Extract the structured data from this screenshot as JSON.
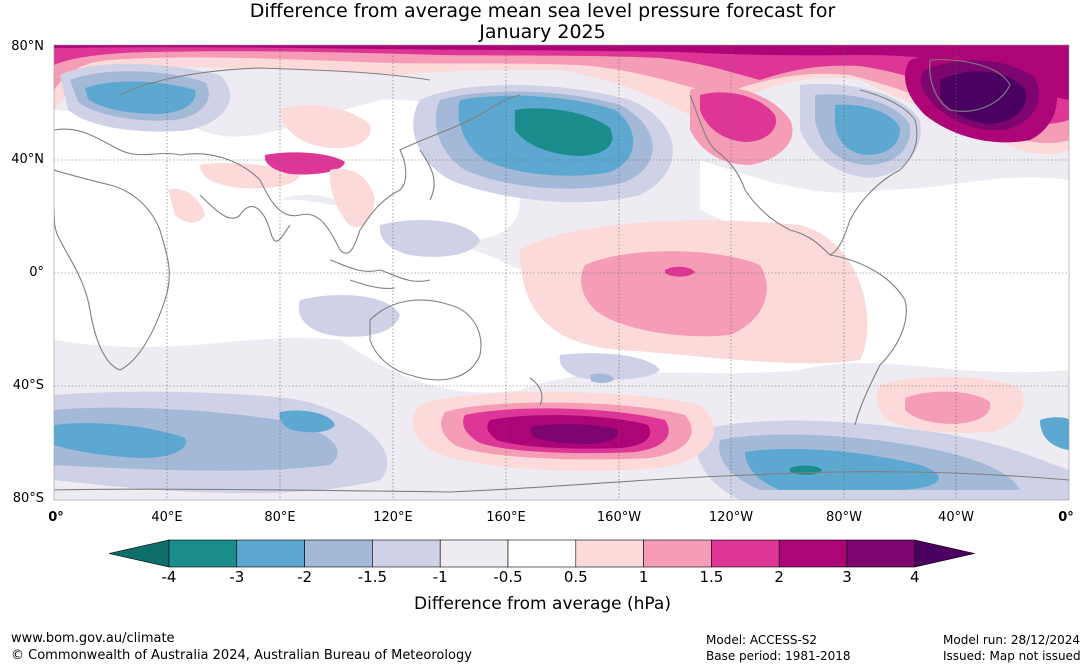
{
  "title_line1": "Difference from average mean sea level pressure forecast for",
  "title_line2": "January 2025",
  "lat_labels": [
    "80°N",
    "40°N",
    "0°",
    "40°S",
    "80°S"
  ],
  "lon_labels": [
    "0°",
    "40°E",
    "80°E",
    "120°E",
    "160°E",
    "160°W",
    "120°W",
    "80°W",
    "40°W",
    "0°"
  ],
  "colorbar": {
    "ticks": [
      "-4",
      "-3",
      "-2",
      "-1.5",
      "-1",
      "-0.5",
      "0.5",
      "1",
      "1.5",
      "2",
      "3",
      "4"
    ],
    "colors": [
      "#1b8c8c",
      "#5da8d0",
      "#a4b8d8",
      "#cfd2e6",
      "#efebf3",
      "#ffffff",
      "#fddada",
      "#f59db6",
      "#dd3697",
      "#ad0478",
      "#7c0570"
    ],
    "under_color": "#0f6e6a",
    "over_color": "#4b0061",
    "title": "Difference from average (hPa)"
  },
  "footer": {
    "url": "www.bom.gov.au/climate",
    "copyright": "© Commonwealth of Australia 2024, Australian Bureau of Meteorology",
    "model": "Model: ACCESS-S2",
    "base_period": "Base period: 1981-2018",
    "model_run": "Model run: 28/12/2024",
    "issued": "Issued: Map not issued"
  }
}
